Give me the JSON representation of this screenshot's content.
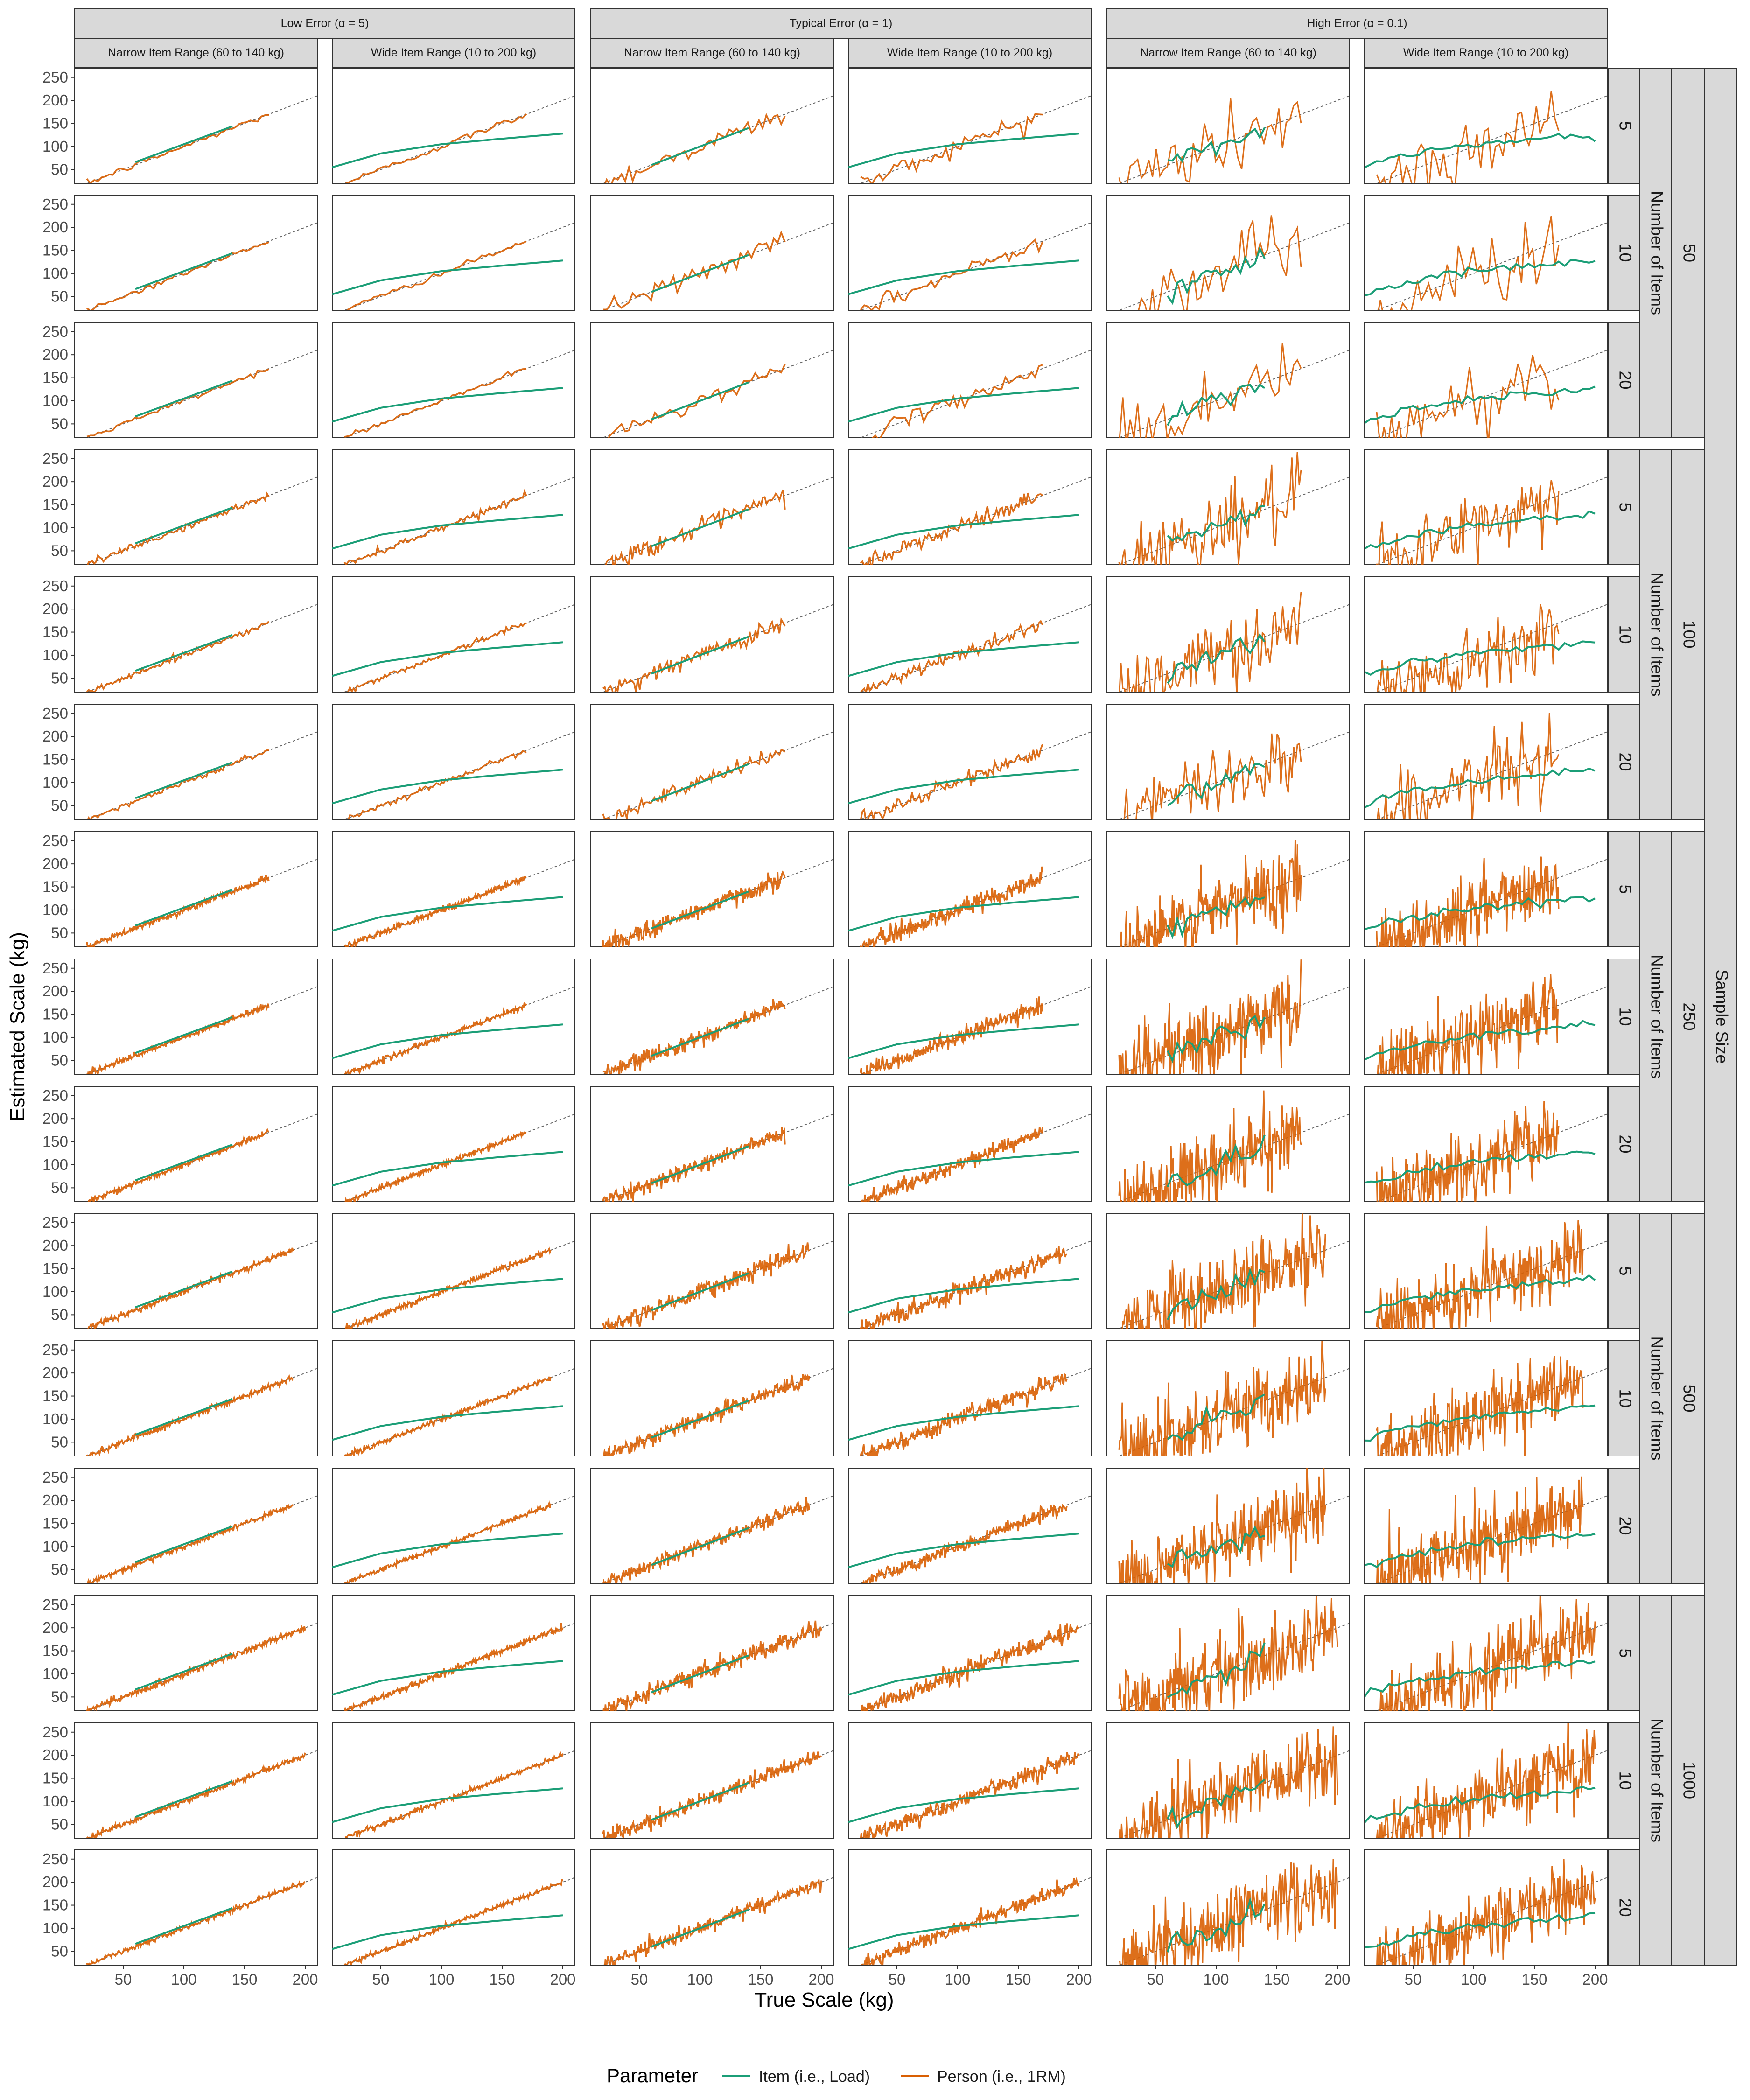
{
  "chart_data": {
    "type": "line",
    "xlabel": "True Scale (kg)",
    "ylabel": "Estimated Scale (kg)",
    "xlim": [
      10,
      210
    ],
    "ylim": [
      20,
      270
    ],
    "x_ticks": [
      50,
      100,
      150,
      200
    ],
    "y_ticks": [
      50,
      100,
      150,
      200,
      250
    ],
    "reference_line": "identity (y = x), dotted grey",
    "grid": false,
    "legend": {
      "title": "Parameter",
      "position": "bottom",
      "entries": [
        {
          "label": "Item (i.e., Load)",
          "color": "#1b9e77"
        },
        {
          "label": "Person (i.e., 1RM)",
          "color": "#d95f02"
        }
      ]
    },
    "column_facets": {
      "outer": [
        "Low Error (α = 5)",
        "Typical Error (α = 1)",
        "High Error (α = 0.1)"
      ],
      "inner": [
        "Narrow Item Range (60 to 140 kg)",
        "Wide Item Range (10 to 200 kg)"
      ]
    },
    "row_facets": {
      "outer_title": "Sample Size",
      "outer": [
        "50",
        "100",
        "250",
        "500",
        "1000"
      ],
      "inner_title": "Number of Items",
      "inner": [
        "5",
        "10",
        "20"
      ]
    },
    "series_description": {
      "item_narrow_x_range": [
        60,
        140
      ],
      "item_wide_x_range": [
        10,
        200
      ],
      "item_wide_approx_curve": [
        [
          10,
          55
        ],
        [
          50,
          85
        ],
        [
          100,
          105
        ],
        [
          150,
          117
        ],
        [
          200,
          128
        ]
      ],
      "person_trend": "scatters around y = x; spread grows with error level",
      "person_x_range_by_sample_size": {
        "50": [
          20,
          170
        ],
        "100": [
          20,
          170
        ],
        "250": [
          20,
          170
        ],
        "500": [
          20,
          190
        ],
        "1000": [
          20,
          200
        ]
      }
    }
  }
}
